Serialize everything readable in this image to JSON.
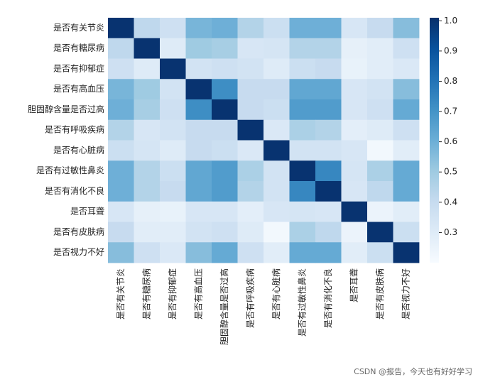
{
  "chart_data": {
    "type": "heatmap",
    "categories": [
      "是否有关节炎",
      "是否有糖尿病",
      "是否有抑郁症",
      "是否有高血压",
      "胆固醇含量是否过高",
      "是否有呼吸疾病",
      "是否有心脏病",
      "是否有过敏性鼻炎",
      "是否有消化不良",
      "是否耳聋",
      "是否有皮肤病",
      "是否视力不好"
    ],
    "values": [
      [
        1,
        0.42,
        0.37,
        0.58,
        0.6,
        0.45,
        0.38,
        0.6,
        0.6,
        0.33,
        0.4,
        0.55
      ],
      [
        0.42,
        1,
        0.3,
        0.5,
        0.48,
        0.33,
        0.34,
        0.45,
        0.45,
        0.27,
        0.29,
        0.37
      ],
      [
        0.37,
        0.3,
        1,
        0.35,
        0.37,
        0.35,
        0.3,
        0.38,
        0.4,
        0.26,
        0.29,
        0.32
      ],
      [
        0.58,
        0.5,
        0.35,
        1,
        0.72,
        0.4,
        0.4,
        0.63,
        0.63,
        0.33,
        0.35,
        0.55
      ],
      [
        0.6,
        0.48,
        0.37,
        0.72,
        1,
        0.4,
        0.38,
        0.67,
        0.67,
        0.33,
        0.37,
        0.62
      ],
      [
        0.45,
        0.33,
        0.35,
        0.4,
        0.4,
        1,
        0.32,
        0.47,
        0.45,
        0.28,
        0.3,
        0.37
      ],
      [
        0.38,
        0.34,
        0.3,
        0.4,
        0.38,
        0.32,
        1,
        0.35,
        0.35,
        0.33,
        0.22,
        0.29
      ],
      [
        0.6,
        0.45,
        0.38,
        0.63,
        0.67,
        0.47,
        0.35,
        1,
        0.74,
        0.34,
        0.47,
        0.62
      ],
      [
        0.6,
        0.45,
        0.4,
        0.63,
        0.67,
        0.45,
        0.35,
        0.74,
        1,
        0.33,
        0.42,
        0.62
      ],
      [
        0.33,
        0.27,
        0.26,
        0.33,
        0.33,
        0.28,
        0.33,
        0.34,
        0.33,
        1,
        0.25,
        0.29
      ],
      [
        0.4,
        0.29,
        0.29,
        0.35,
        0.37,
        0.3,
        0.22,
        0.47,
        0.42,
        0.25,
        1,
        0.38
      ],
      [
        0.55,
        0.37,
        0.32,
        0.55,
        0.62,
        0.37,
        0.29,
        0.62,
        0.62,
        0.29,
        0.38,
        1
      ]
    ],
    "colormap": [
      "#f7fbff",
      "#deebf7",
      "#c6dbef",
      "#9ecae1",
      "#6baed6",
      "#4292c6",
      "#2171b5",
      "#08519c",
      "#08306b"
    ],
    "zlim": [
      0.2,
      1.01
    ],
    "zticks": [
      0.3,
      0.4,
      0.5,
      0.6,
      0.7,
      0.8,
      0.9,
      {
        "value": 1,
        "label": "1.0"
      }
    ],
    "watermark": "CSDN @报告，今天也有好好学习"
  }
}
